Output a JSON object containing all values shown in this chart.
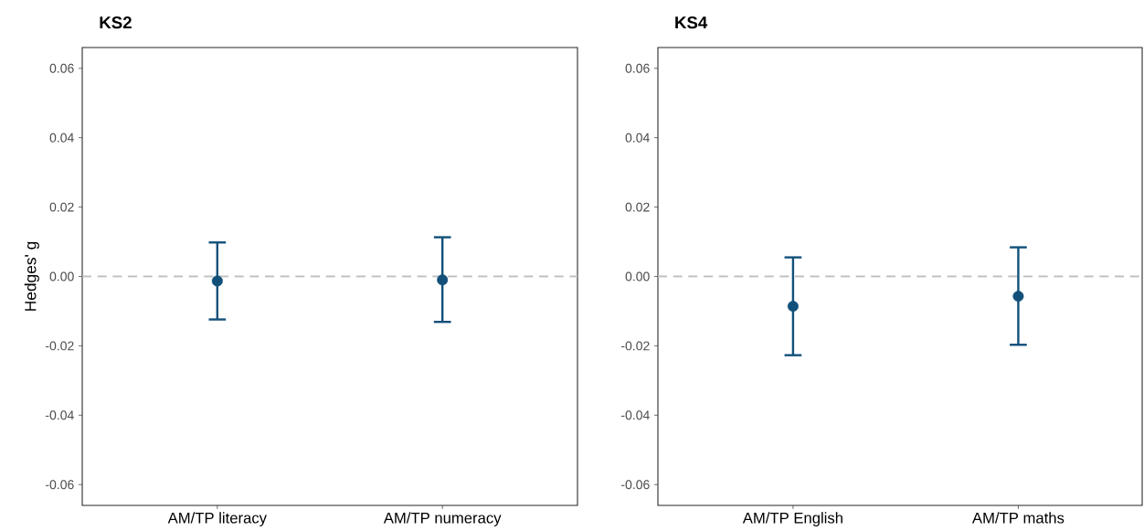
{
  "chart_data": [
    {
      "type": "scatter",
      "title": "KS2",
      "ylabel": "Hedges' g",
      "categories": [
        "AM/TP literacy",
        "AM/TP numeracy"
      ],
      "series": [
        {
          "color": "#12507a",
          "values": [
            -0.0013,
            -0.001
          ],
          "errors": [
            [
              -0.0124,
              0.0098
            ],
            [
              -0.0131,
              0.0113
            ]
          ]
        }
      ],
      "ylim": [
        -0.066,
        0.066
      ],
      "yticks": [
        {
          "value": -0.06,
          "label": "-0.06"
        },
        {
          "value": -0.04,
          "label": "-0.04"
        },
        {
          "value": -0.02,
          "label": "-0.02"
        },
        {
          "value": 0,
          "label": "0.00"
        },
        {
          "value": 0.02,
          "label": "0.02"
        },
        {
          "value": 0.04,
          "label": "0.04"
        },
        {
          "value": 0.06,
          "label": "0.06"
        }
      ],
      "ref_lines": [
        {
          "axis": "y",
          "value": 0,
          "color": "#bebebe",
          "line_style": "dashed"
        }
      ],
      "grid": false
    },
    {
      "type": "scatter",
      "title": "KS4",
      "categories": [
        "AM/TP English",
        "AM/TP maths"
      ],
      "series": [
        {
          "color": "#12507a",
          "values": [
            -0.0086,
            -0.0057
          ],
          "errors": [
            [
              -0.0227,
              0.0055
            ],
            [
              -0.0197,
              0.0084
            ]
          ]
        }
      ],
      "ylim": [
        -0.066,
        0.066
      ],
      "yticks": [
        {
          "value": -0.06,
          "label": "-0.06"
        },
        {
          "value": -0.04,
          "label": "-0.04"
        },
        {
          "value": -0.02,
          "label": "-0.02"
        },
        {
          "value": 0,
          "label": "0.00"
        },
        {
          "value": 0.02,
          "label": "0.02"
        },
        {
          "value": 0.04,
          "label": "0.04"
        },
        {
          "value": 0.06,
          "label": "0.06"
        }
      ],
      "ref_lines": [
        {
          "axis": "y",
          "value": 0,
          "color": "#bebebe",
          "line_style": "dashed"
        }
      ],
      "grid": false
    }
  ]
}
